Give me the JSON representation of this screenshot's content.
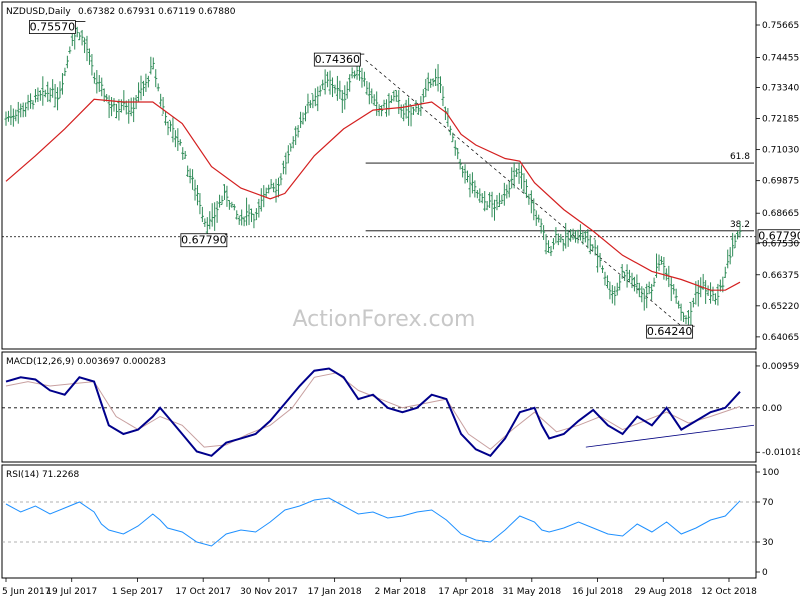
{
  "header": {
    "symbol_title": "NZDUSD,Daily",
    "ohlc": "0.67382 0.67931 0.67119 0.67880"
  },
  "watermark": "ActionForex.com",
  "colors": {
    "price_bars": "#2e8b57",
    "moving_average": "#d42020",
    "macd_line": "#00008b",
    "macd_signal": "#c8a0a0",
    "rsi_line": "#1e90ff",
    "support_line": "#000080"
  },
  "chart_data": [
    {
      "type": "ohlc",
      "panel": "price",
      "ylim": [
        0.638,
        0.76
      ],
      "y_ticks": [
        "0.75665",
        "0.74455",
        "0.73340",
        "0.72185",
        "0.71030",
        "0.69875",
        "0.68665",
        "0.67530",
        "0.66375",
        "0.65220",
        "0.64065"
      ],
      "x_ticks": [
        "5 Jun 2017",
        "19 Jul 2017",
        "1 Sep 2017",
        "17 Oct 2017",
        "30 Nov 2017",
        "17 Jan 2018",
        "2 Mar 2018",
        "17 Apr 2018",
        "31 May 2018",
        "16 Jul 2018",
        "29 Aug 2018",
        "12 Oct 2018"
      ],
      "x_range": [
        0,
        100
      ],
      "close_path": [
        [
          0,
          0.722
        ],
        [
          2,
          0.725
        ],
        [
          4,
          0.729
        ],
        [
          6,
          0.732
        ],
        [
          7,
          0.73
        ],
        [
          8,
          0.739
        ],
        [
          9,
          0.752
        ],
        [
          10,
          0.754
        ],
        [
          11,
          0.748
        ],
        [
          12,
          0.737
        ],
        [
          13,
          0.733
        ],
        [
          14,
          0.728
        ],
        [
          15,
          0.725
        ],
        [
          16,
          0.729
        ],
        [
          17,
          0.724
        ],
        [
          18,
          0.731
        ],
        [
          19,
          0.734
        ],
        [
          20,
          0.742
        ],
        [
          21,
          0.73
        ],
        [
          22,
          0.72
        ],
        [
          23,
          0.716
        ],
        [
          24,
          0.711
        ],
        [
          25,
          0.701
        ],
        [
          26,
          0.695
        ],
        [
          27,
          0.684
        ],
        [
          28,
          0.683
        ],
        [
          29,
          0.69
        ],
        [
          30,
          0.694
        ],
        [
          31,
          0.688
        ],
        [
          32,
          0.683
        ],
        [
          33,
          0.688
        ],
        [
          34,
          0.685
        ],
        [
          35,
          0.692
        ],
        [
          36,
          0.698
        ],
        [
          37,
          0.696
        ],
        [
          38,
          0.705
        ],
        [
          39,
          0.711
        ],
        [
          40,
          0.72
        ],
        [
          41,
          0.726
        ],
        [
          42,
          0.73
        ],
        [
          43,
          0.733
        ],
        [
          44,
          0.736
        ],
        [
          45,
          0.733
        ],
        [
          46,
          0.729
        ],
        [
          47,
          0.737
        ],
        [
          48,
          0.741
        ],
        [
          49,
          0.735
        ],
        [
          50,
          0.728
        ],
        [
          51,
          0.725
        ],
        [
          52,
          0.727
        ],
        [
          53,
          0.73
        ],
        [
          54,
          0.725
        ],
        [
          55,
          0.723
        ],
        [
          56,
          0.726
        ],
        [
          57,
          0.73
        ],
        [
          58,
          0.737
        ],
        [
          59,
          0.736
        ],
        [
          60,
          0.724
        ],
        [
          61,
          0.712
        ],
        [
          62,
          0.704
        ],
        [
          63,
          0.699
        ],
        [
          64,
          0.695
        ],
        [
          65,
          0.691
        ],
        [
          66,
          0.69
        ],
        [
          67,
          0.689
        ],
        [
          68,
          0.695
        ],
        [
          69,
          0.699
        ],
        [
          70,
          0.702
        ],
        [
          71,
          0.695
        ],
        [
          72,
          0.687
        ],
        [
          73,
          0.681
        ],
        [
          74,
          0.672
        ],
        [
          75,
          0.679
        ],
        [
          76,
          0.676
        ],
        [
          77,
          0.678
        ],
        [
          78,
          0.679
        ],
        [
          79,
          0.677
        ],
        [
          80,
          0.674
        ],
        [
          81,
          0.669
        ],
        [
          82,
          0.66
        ],
        [
          83,
          0.656
        ],
        [
          84,
          0.665
        ],
        [
          85,
          0.663
        ],
        [
          86,
          0.659
        ],
        [
          87,
          0.656
        ],
        [
          88,
          0.659
        ],
        [
          89,
          0.669
        ],
        [
          90,
          0.665
        ],
        [
          91,
          0.659
        ],
        [
          92,
          0.65
        ],
        [
          93,
          0.647
        ],
        [
          94,
          0.657
        ],
        [
          95,
          0.66
        ],
        [
          96,
          0.656
        ],
        [
          97,
          0.655
        ],
        [
          98,
          0.664
        ],
        [
          99,
          0.675
        ],
        [
          100,
          0.6788
        ]
      ],
      "ma_path": [
        [
          0,
          0.6985
        ],
        [
          4,
          0.708
        ],
        [
          8,
          0.718
        ],
        [
          12,
          0.729
        ],
        [
          16,
          0.728
        ],
        [
          20,
          0.728
        ],
        [
          24,
          0.72
        ],
        [
          28,
          0.704
        ],
        [
          32,
          0.696
        ],
        [
          36,
          0.692
        ],
        [
          38,
          0.694
        ],
        [
          42,
          0.708
        ],
        [
          46,
          0.718
        ],
        [
          50,
          0.725
        ],
        [
          54,
          0.726
        ],
        [
          58,
          0.728
        ],
        [
          60,
          0.724
        ],
        [
          62,
          0.716
        ],
        [
          64,
          0.712
        ],
        [
          68,
          0.707
        ],
        [
          70,
          0.706
        ],
        [
          72,
          0.698
        ],
        [
          76,
          0.688
        ],
        [
          80,
          0.68
        ],
        [
          84,
          0.671
        ],
        [
          88,
          0.665
        ],
        [
          92,
          0.662
        ],
        [
          96,
          0.658
        ],
        [
          98,
          0.658
        ],
        [
          100,
          0.661
        ]
      ],
      "levels": [
        {
          "label": "61.8",
          "value": 0.7053,
          "from_x": 49
        },
        {
          "label": "38.2",
          "value": 0.6801,
          "from_x": 49
        }
      ],
      "current_price_line": 0.6779,
      "trendline": [
        [
          49,
          0.7436
        ],
        [
          93,
          0.6424
        ]
      ],
      "annotations": [
        {
          "text": "0.75570",
          "x": 10,
          "value": 0.7557
        },
        {
          "text": "0.67790",
          "x": 29,
          "value": 0.6779
        },
        {
          "text": "0.74360",
          "x": 48,
          "value": 0.7436
        },
        {
          "text": "0.64240",
          "x": 93,
          "value": 0.6424
        },
        {
          "text": "0.67790",
          "x": 100,
          "value": 0.6779
        }
      ]
    },
    {
      "type": "line",
      "panel": "macd",
      "label": "MACD(12,26,9) 0.003697 0.000283",
      "ylim": [
        -0.0115,
        0.0105
      ],
      "y_ticks": [
        "0.009597",
        "0.00",
        "-0.01018"
      ],
      "zero_line": 0,
      "macd_path": [
        [
          0,
          0.006
        ],
        [
          2,
          0.007
        ],
        [
          4,
          0.0065
        ],
        [
          6,
          0.004
        ],
        [
          8,
          0.003
        ],
        [
          10,
          0.007
        ],
        [
          12,
          0.006
        ],
        [
          13,
          0.001
        ],
        [
          14,
          -0.004
        ],
        [
          16,
          -0.006
        ],
        [
          18,
          -0.005
        ],
        [
          20,
          -0.002
        ],
        [
          21,
          0.0
        ],
        [
          22,
          -0.002
        ],
        [
          24,
          -0.006
        ],
        [
          26,
          -0.01
        ],
        [
          28,
          -0.011
        ],
        [
          30,
          -0.008
        ],
        [
          32,
          -0.007
        ],
        [
          34,
          -0.006
        ],
        [
          36,
          -0.003
        ],
        [
          38,
          0.001
        ],
        [
          40,
          0.005
        ],
        [
          42,
          0.0085
        ],
        [
          44,
          0.009
        ],
        [
          46,
          0.007
        ],
        [
          48,
          0.002
        ],
        [
          50,
          0.003
        ],
        [
          52,
          0.0
        ],
        [
          54,
          -0.001
        ],
        [
          56,
          0.0
        ],
        [
          58,
          0.003
        ],
        [
          60,
          0.002
        ],
        [
          62,
          -0.006
        ],
        [
          64,
          -0.0095
        ],
        [
          66,
          -0.011
        ],
        [
          68,
          -0.007
        ],
        [
          70,
          -0.001
        ],
        [
          72,
          0.0
        ],
        [
          73,
          -0.004
        ],
        [
          74,
          -0.007
        ],
        [
          76,
          -0.006
        ],
        [
          78,
          -0.003
        ],
        [
          80,
          -0.0005
        ],
        [
          82,
          -0.004
        ],
        [
          84,
          -0.006
        ],
        [
          86,
          -0.002
        ],
        [
          88,
          -0.004
        ],
        [
          90,
          0.0
        ],
        [
          92,
          -0.005
        ],
        [
          94,
          -0.003
        ],
        [
          96,
          -0.001
        ],
        [
          98,
          0.0
        ],
        [
          100,
          0.0037
        ]
      ],
      "signal_path": [
        [
          0,
          0.005
        ],
        [
          3,
          0.006
        ],
        [
          6,
          0.005
        ],
        [
          9,
          0.0055
        ],
        [
          12,
          0.006
        ],
        [
          15,
          -0.002
        ],
        [
          18,
          -0.005
        ],
        [
          21,
          -0.002
        ],
        [
          24,
          -0.004
        ],
        [
          27,
          -0.009
        ],
        [
          30,
          -0.0085
        ],
        [
          33,
          -0.006
        ],
        [
          36,
          -0.004
        ],
        [
          39,
          0.0
        ],
        [
          42,
          0.007
        ],
        [
          45,
          0.008
        ],
        [
          48,
          0.004
        ],
        [
          51,
          0.002
        ],
        [
          54,
          0.0
        ],
        [
          57,
          0.001
        ],
        [
          60,
          0.002
        ],
        [
          63,
          -0.006
        ],
        [
          66,
          -0.0095
        ],
        [
          69,
          -0.005
        ],
        [
          72,
          -0.001
        ],
        [
          75,
          -0.0055
        ],
        [
          78,
          -0.004
        ],
        [
          81,
          -0.002
        ],
        [
          84,
          -0.005
        ],
        [
          87,
          -0.003
        ],
        [
          90,
          -0.001
        ],
        [
          93,
          -0.0035
        ],
        [
          96,
          -0.002
        ],
        [
          100,
          0.0003
        ]
      ],
      "trendline": [
        [
          79,
          -0.009
        ],
        [
          100,
          -0.004
        ]
      ]
    },
    {
      "type": "line",
      "panel": "rsi",
      "label": "RSI(14) 71.2268",
      "ylim": [
        0,
        100
      ],
      "y_ticks": [
        "100",
        "70",
        "30",
        "0"
      ],
      "guide_levels": [
        70,
        30
      ],
      "rsi_path": [
        [
          0,
          68
        ],
        [
          2,
          60
        ],
        [
          4,
          66
        ],
        [
          6,
          58
        ],
        [
          8,
          64
        ],
        [
          10,
          70
        ],
        [
          12,
          60
        ],
        [
          13,
          48
        ],
        [
          14,
          42
        ],
        [
          16,
          38
        ],
        [
          18,
          46
        ],
        [
          20,
          58
        ],
        [
          21,
          52
        ],
        [
          22,
          44
        ],
        [
          24,
          40
        ],
        [
          26,
          30
        ],
        [
          28,
          26
        ],
        [
          30,
          38
        ],
        [
          32,
          42
        ],
        [
          34,
          40
        ],
        [
          36,
          50
        ],
        [
          38,
          62
        ],
        [
          40,
          66
        ],
        [
          42,
          72
        ],
        [
          44,
          74
        ],
        [
          46,
          66
        ],
        [
          48,
          58
        ],
        [
          50,
          60
        ],
        [
          52,
          54
        ],
        [
          54,
          56
        ],
        [
          56,
          60
        ],
        [
          58,
          62
        ],
        [
          60,
          52
        ],
        [
          62,
          38
        ],
        [
          64,
          32
        ],
        [
          66,
          30
        ],
        [
          68,
          42
        ],
        [
          70,
          56
        ],
        [
          72,
          50
        ],
        [
          73,
          42
        ],
        [
          74,
          40
        ],
        [
          76,
          44
        ],
        [
          78,
          50
        ],
        [
          80,
          44
        ],
        [
          82,
          38
        ],
        [
          84,
          36
        ],
        [
          86,
          48
        ],
        [
          88,
          40
        ],
        [
          90,
          50
        ],
        [
          92,
          38
        ],
        [
          94,
          44
        ],
        [
          96,
          52
        ],
        [
          98,
          56
        ],
        [
          100,
          71.2
        ]
      ]
    }
  ]
}
